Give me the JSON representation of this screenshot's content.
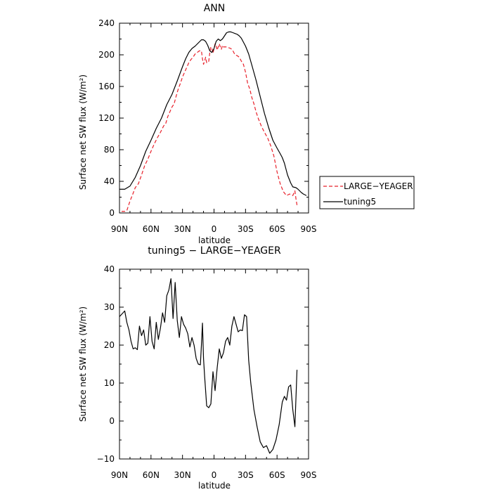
{
  "chart_data": [
    {
      "type": "line",
      "title": "ANN",
      "xlabel": "latitude",
      "ylabel": "Surface net SW flux (W/m²)",
      "xlim": [
        -90,
        90
      ],
      "ylim": [
        0,
        240
      ],
      "x_ticks": [
        -90,
        -60,
        -30,
        0,
        30,
        60,
        90
      ],
      "x_tick_labels": [
        "90N",
        "60N",
        "30N",
        "0",
        "30S",
        "60S",
        "90S"
      ],
      "y_ticks": [
        0,
        40,
        80,
        120,
        160,
        200,
        240
      ],
      "y_tick_labels": [
        "0",
        "40",
        "80",
        "120",
        "160",
        "200",
        "240"
      ],
      "legend_position": "outside-right",
      "series": [
        {
          "name": "LARGE−YEAGER",
          "color": "#e8202a",
          "dash": "dashed",
          "x": [
            -88,
            -85,
            -83,
            -80,
            -77,
            -75,
            -72,
            -69,
            -66,
            -63,
            -60,
            -57,
            -54,
            -51,
            -48,
            -46,
            -44,
            -42,
            -40,
            -38,
            -36,
            -34,
            -32,
            -30,
            -28,
            -26,
            -24,
            -22,
            -20,
            -18,
            -16,
            -14,
            -12,
            -11,
            -10,
            -9,
            -8,
            -7,
            -6,
            -5,
            -4,
            -3,
            -2,
            -1,
            0,
            1,
            2,
            3,
            4,
            5,
            6,
            7,
            8,
            9,
            10,
            12,
            14,
            16,
            18,
            20,
            22,
            24,
            26,
            28,
            30,
            32,
            34,
            36,
            38,
            40,
            42,
            45,
            48,
            51,
            54,
            57,
            60,
            63,
            66,
            69,
            72,
            75,
            77,
            78,
            79
          ],
          "y": [
            2,
            2,
            3,
            15,
            25,
            32,
            37,
            48,
            60,
            68,
            78,
            87,
            95,
            102,
            110,
            113,
            122,
            128,
            134,
            138,
            148,
            157,
            164,
            172,
            178,
            184,
            190,
            194,
            197,
            201,
            203,
            205,
            205,
            195,
            188,
            192,
            197,
            190,
            190,
            192,
            203,
            210,
            208,
            202,
            208,
            214,
            211,
            206,
            210,
            214,
            210,
            207,
            212,
            210,
            210,
            210,
            209,
            208,
            205,
            200,
            199,
            197,
            192,
            188,
            178,
            164,
            157,
            146,
            138,
            128,
            120,
            110,
            102,
            95,
            85,
            72,
            52,
            37,
            27,
            22,
            24,
            22,
            28,
            18,
            10
          ]
        },
        {
          "name": "tuning5",
          "color": "#000000",
          "dash": "solid",
          "x": [
            -90,
            -85,
            -80,
            -75,
            -70,
            -65,
            -60,
            -55,
            -50,
            -45,
            -40,
            -35,
            -30,
            -27,
            -24,
            -21,
            -18,
            -15,
            -12,
            -10,
            -8,
            -6,
            -4,
            -2,
            0,
            2,
            4,
            6,
            8,
            10,
            12,
            14,
            16,
            18,
            20,
            22,
            24,
            26,
            28,
            30,
            33,
            36,
            40,
            44,
            48,
            52,
            56,
            60,
            63,
            65,
            67,
            70,
            73,
            75,
            78,
            80,
            83,
            85,
            88
          ],
          "y": [
            30,
            30,
            34,
            45,
            60,
            78,
            92,
            107,
            120,
            137,
            150,
            167,
            185,
            195,
            203,
            208,
            211,
            215,
            219,
            219,
            217,
            212,
            205,
            203,
            208,
            217,
            220,
            218,
            220,
            224,
            228,
            229,
            229,
            228,
            227,
            226,
            224,
            221,
            216,
            211,
            201,
            187,
            168,
            147,
            126,
            108,
            92,
            82,
            75,
            70,
            63,
            48,
            38,
            33,
            32,
            30,
            26,
            24,
            22
          ]
        }
      ]
    },
    {
      "type": "line",
      "title": "tuning5 − LARGE−YEAGER",
      "xlabel": "latitude",
      "ylabel": "Surface net SW flux (W/m²)",
      "xlim": [
        -90,
        90
      ],
      "ylim": [
        -10,
        40
      ],
      "x_ticks": [
        -90,
        -60,
        -30,
        0,
        30,
        60,
        90
      ],
      "x_tick_labels": [
        "90N",
        "60N",
        "30N",
        "0",
        "30S",
        "60S",
        "90S"
      ],
      "y_ticks": [
        -10,
        0,
        10,
        20,
        30,
        40
      ],
      "y_tick_labels": [
        "−10",
        "0",
        "10",
        "20",
        "30",
        "40"
      ],
      "series": [
        {
          "color": "#000000",
          "dash": "solid",
          "x": [
            -90,
            -85,
            -83,
            -81,
            -79,
            -77,
            -75,
            -73,
            -71,
            -69,
            -67,
            -65,
            -63,
            -61,
            -59,
            -57,
            -55,
            -53,
            -51,
            -49,
            -47,
            -45,
            -43,
            -41,
            -39,
            -37,
            -35,
            -33,
            -31,
            -29,
            -27,
            -25,
            -23,
            -21,
            -19,
            -17,
            -15,
            -13,
            -12,
            -11,
            -10,
            -9,
            -7,
            -5,
            -3,
            -1,
            1,
            3,
            5,
            7,
            9,
            11,
            13,
            15,
            17,
            19,
            21,
            23,
            25,
            27,
            29,
            31,
            33,
            35,
            38,
            41,
            44,
            47,
            50,
            53,
            56,
            59,
            62,
            65,
            67,
            69,
            71,
            73,
            75,
            77,
            79
          ],
          "y": [
            27.5,
            29,
            26,
            24,
            21,
            19,
            19.3,
            18.8,
            25,
            22.5,
            24,
            20,
            20.5,
            27.5,
            21,
            19,
            26,
            21.5,
            24.5,
            28.5,
            26,
            33,
            34.5,
            37.5,
            27,
            36.5,
            26.5,
            22,
            27.5,
            25.5,
            24.5,
            23,
            19.5,
            22,
            20,
            16.5,
            15,
            14.8,
            20,
            25.8,
            16.5,
            12,
            4,
            3.5,
            4.5,
            13,
            8,
            14,
            19,
            16.5,
            18,
            21,
            22,
            20,
            25,
            27.5,
            25.5,
            23.5,
            24,
            23.8,
            28,
            27.5,
            16,
            10,
            3,
            -1.5,
            -5.5,
            -7,
            -6.5,
            -8.5,
            -7.5,
            -5,
            -1,
            5,
            6.5,
            5.5,
            9,
            9.5,
            3,
            -1.5,
            13.5
          ]
        }
      ]
    }
  ]
}
